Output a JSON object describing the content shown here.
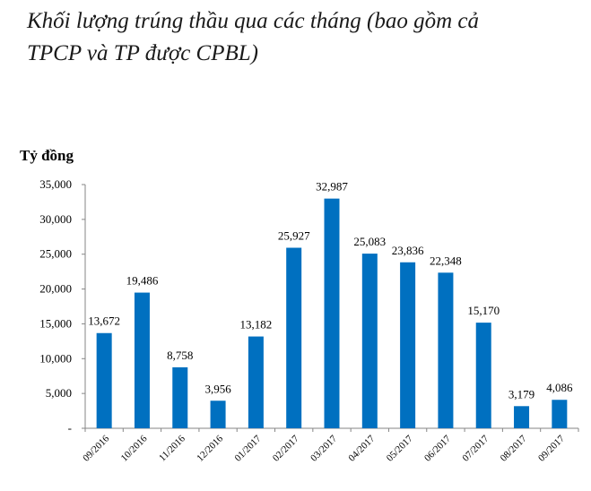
{
  "title_lines": [
    "Khối lượng trúng thầu qua các tháng (bao gồm cả",
    "TPCP và TP được CPBL)"
  ],
  "chart_data": {
    "type": "bar",
    "title": "Khối lượng trúng thầu qua các tháng (bao gồm cả TPCP và TP được CPBL)",
    "ylabel": "Tỷ đồng",
    "xlabel": "",
    "categories": [
      "09/2016",
      "10/2016",
      "11/2016",
      "12/2016",
      "01/2017",
      "02/2017",
      "03/2017",
      "04/2017",
      "05/2017",
      "06/2017",
      "07/2017",
      "08/2017",
      "09/2017"
    ],
    "values": [
      13672,
      19486,
      8758,
      3956,
      13182,
      25927,
      32987,
      25083,
      23836,
      22348,
      15170,
      3179,
      4086
    ],
    "value_labels": [
      "13,672",
      "19,486",
      "8,758",
      "3,956",
      "13,182",
      "25,927",
      "32,987",
      "25,083",
      "23,836",
      "22,348",
      "15,170",
      "3,179",
      "4,086"
    ],
    "ylim": [
      0,
      35000
    ],
    "yticks": [
      0,
      5000,
      10000,
      15000,
      20000,
      25000,
      30000,
      35000
    ],
    "ytick_labels": [
      "-",
      "5,000",
      "10,000",
      "15,000",
      "20,000",
      "25,000",
      "30,000",
      "35,000"
    ],
    "grid": false,
    "bar_color": "#0070C0"
  }
}
